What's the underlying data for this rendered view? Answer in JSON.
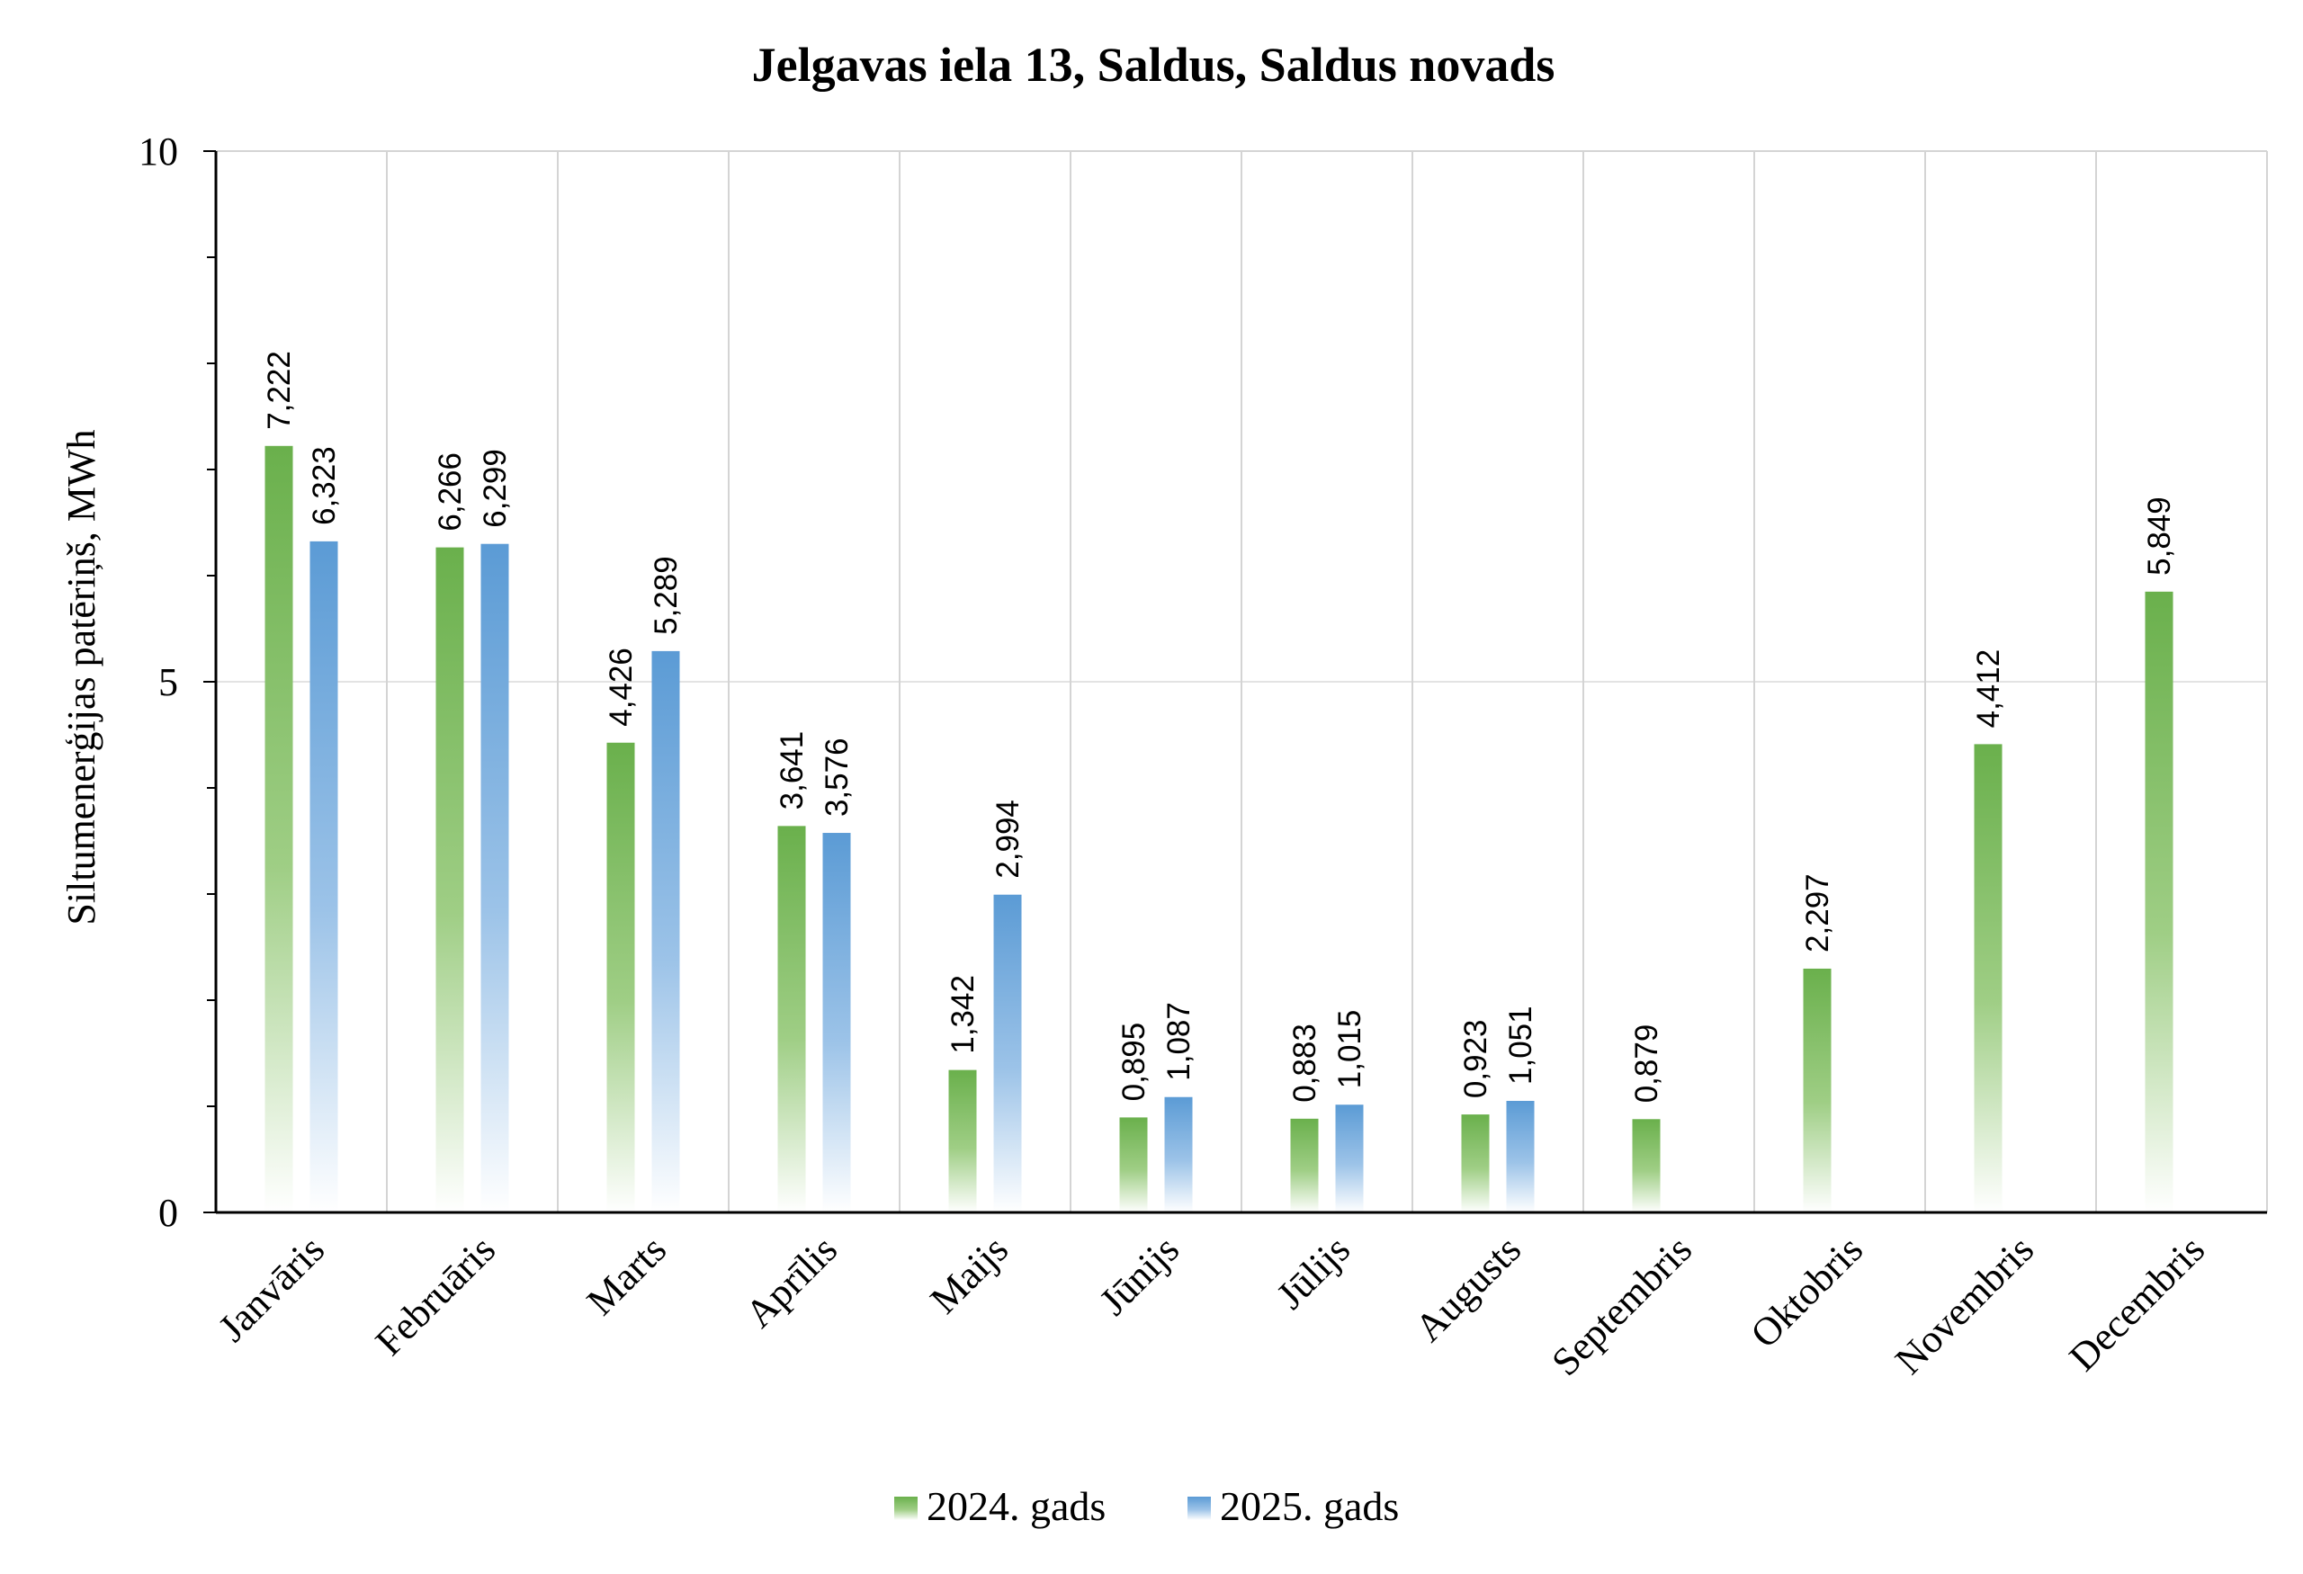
{
  "chart_data": {
    "type": "bar",
    "title": "Jelgavas iela 13, Saldus, Saldus novads",
    "ylabel": "Siltumenerģijas patēriņš, MWh",
    "xlabel": "",
    "ylim": [
      0,
      10
    ],
    "yticks": [
      0,
      5,
      10
    ],
    "grid": true,
    "legend_position": "bottom",
    "categories": [
      "Janvāris",
      "Februāris",
      "Marts",
      "Aprīlis",
      "Maijs",
      "Jūnijs",
      "Jūlijs",
      "Augusts",
      "Septembris",
      "Oktobris",
      "Novembris",
      "Decembris"
    ],
    "series": [
      {
        "name": "2024. gads",
        "color": "#6ab04c",
        "values": [
          7.222,
          6.266,
          4.426,
          3.641,
          1.342,
          0.895,
          0.883,
          0.923,
          0.879,
          2.297,
          4.412,
          5.849
        ],
        "labels": [
          "7,222",
          "6,266",
          "4,426",
          "3,641",
          "1,342",
          "0,895",
          "0,883",
          "0,923",
          "0,879",
          "2,297",
          "4,412",
          "5,849"
        ]
      },
      {
        "name": "2025. gads",
        "color": "#5b9bd5",
        "values": [
          6.323,
          6.299,
          5.289,
          3.576,
          2.994,
          1.087,
          1.015,
          1.051,
          null,
          null,
          null,
          null
        ],
        "labels": [
          "6,323",
          "6,299",
          "5,289",
          "3,576",
          "2,994",
          "1,087",
          "1,015",
          "1,051",
          null,
          null,
          null,
          null
        ]
      }
    ]
  }
}
